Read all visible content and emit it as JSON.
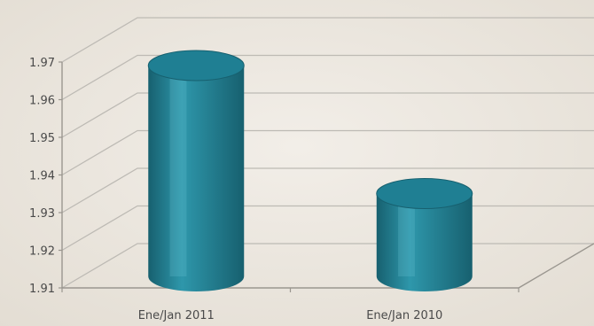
{
  "chart_data": {
    "type": "bar",
    "style": "3d-cylinder",
    "categories": [
      "Ene/Jan 2011",
      "Ene/Jan 2010"
    ],
    "values": [
      1.966,
      1.932
    ],
    "ylim": [
      1.91,
      1.97
    ],
    "yticks": [
      "1.91",
      "1.92",
      "1.93",
      "1.94",
      "1.95",
      "1.96",
      "1.97"
    ],
    "grid": true,
    "legend": "none",
    "colors": {
      "bar": "#2e97ab",
      "bar_dark": "#17606f",
      "bar_light": "#6cc4d4",
      "bar_top": "#1f7f93",
      "grid": "#bdbab4",
      "axis": "#9a968f",
      "background": "#ebe6de"
    }
  }
}
